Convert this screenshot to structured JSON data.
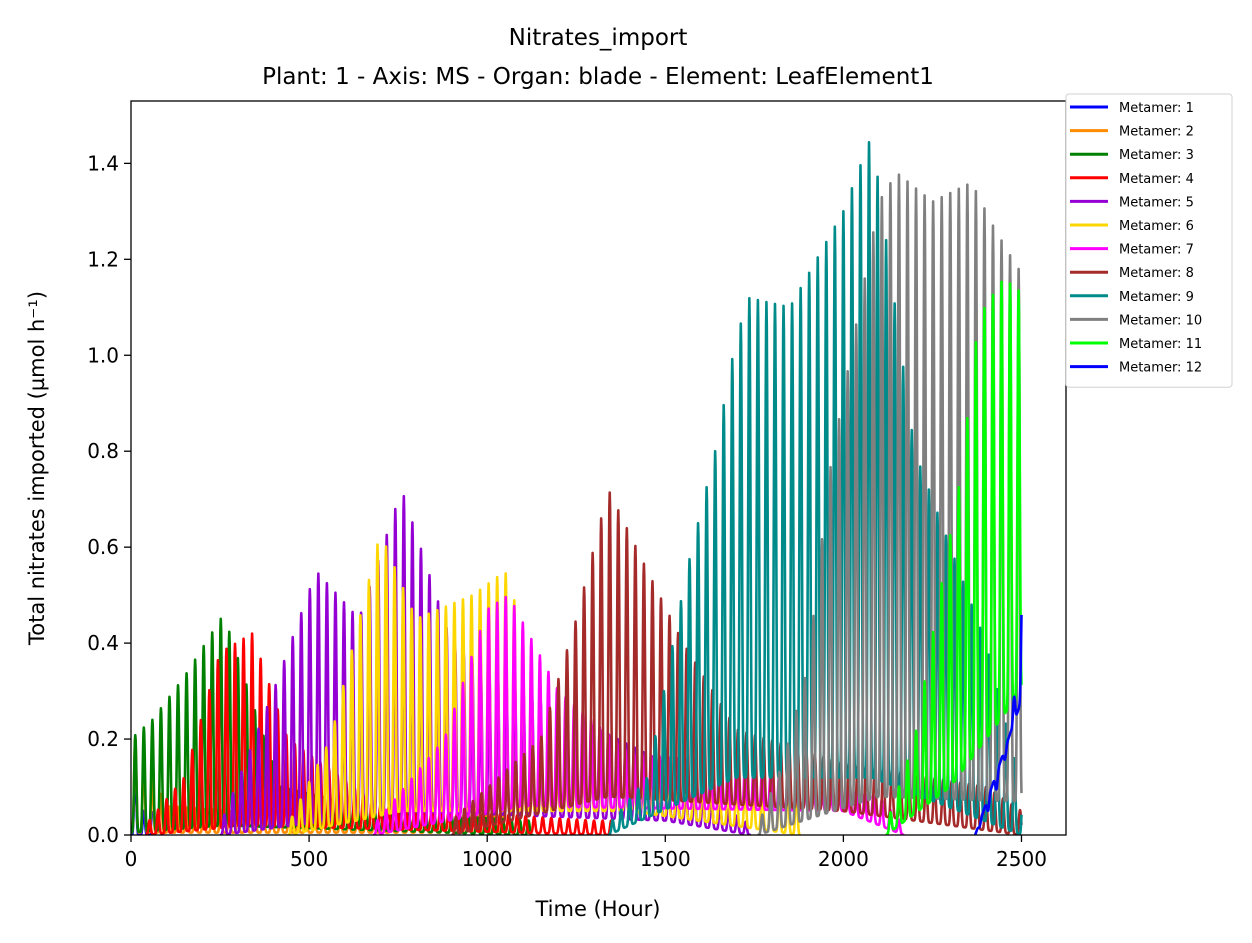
{
  "chart_data": {
    "type": "line",
    "title": "Nitrates_import",
    "subtitle": "Plant: 1 - Axis: MS - Organ: blade - Element: LeafElement1",
    "xlabel": "Time (Hour)",
    "ylabel": "Total nitrates imported (µmol h⁻¹)",
    "xlim": [
      0,
      2625
    ],
    "ylim": [
      0,
      1.53
    ],
    "xticks": [
      0,
      500,
      1000,
      1500,
      2000,
      2500
    ],
    "yticks": [
      0.0,
      0.2,
      0.4,
      0.6,
      0.8,
      1.0,
      1.2,
      1.4
    ],
    "xtick_labels": [
      "0",
      "500",
      "1000",
      "1500",
      "2000",
      "2500"
    ],
    "ytick_labels": [
      "0.0",
      "0.2",
      "0.4",
      "0.6",
      "0.8",
      "1.0",
      "1.2",
      "1.4"
    ],
    "legend_position": "outside-top-right",
    "grid": false,
    "period_hours": 24,
    "series": [
      {
        "name": "Metamer: 1",
        "color": "#0000ff",
        "start": 0,
        "end": 60,
        "peaks": [
          [
            0,
            0.2
          ],
          [
            30,
            0.05
          ]
        ],
        "trough": [
          [
            0,
            0.0
          ]
        ]
      },
      {
        "name": "Metamer: 2",
        "color": "#ff8c00",
        "start": 0,
        "end": 1050,
        "peaks": [
          [
            0,
            0.22
          ],
          [
            100,
            0.06
          ],
          [
            500,
            0.04
          ],
          [
            1000,
            0.04
          ]
        ],
        "trough": [
          [
            0,
            0.005
          ]
        ]
      },
      {
        "name": "Metamer: 3",
        "color": "#008000",
        "start": 0,
        "end": 1130,
        "peaks": [
          [
            0,
            0.2
          ],
          [
            60,
            0.24
          ],
          [
            150,
            0.33
          ],
          [
            260,
            0.46
          ],
          [
            330,
            0.3
          ],
          [
            420,
            0.1
          ],
          [
            700,
            0.05
          ],
          [
            1100,
            0.03
          ]
        ],
        "trough": [
          [
            0,
            0.005
          ],
          [
            260,
            0.02
          ],
          [
            1100,
            0.0
          ]
        ]
      },
      {
        "name": "Metamer: 4",
        "color": "#ff0000",
        "start": 40,
        "end": 1350,
        "peaks": [
          [
            40,
            0.02
          ],
          [
            150,
            0.12
          ],
          [
            250,
            0.38
          ],
          [
            340,
            0.42
          ],
          [
            440,
            0.2
          ],
          [
            700,
            0.06
          ],
          [
            1300,
            0.03
          ]
        ],
        "trough": [
          [
            40,
            0.0
          ],
          [
            330,
            0.02
          ],
          [
            1350,
            0.0
          ]
        ]
      },
      {
        "name": "Metamer: 5",
        "color": "#9400d3",
        "start": 250,
        "end": 1740,
        "peaks": [
          [
            250,
            0.02
          ],
          [
            400,
            0.3
          ],
          [
            520,
            0.55
          ],
          [
            640,
            0.45
          ],
          [
            760,
            0.72
          ],
          [
            900,
            0.4
          ],
          [
            1100,
            0.3
          ],
          [
            1500,
            0.15
          ],
          [
            1740,
            0.02
          ]
        ],
        "trough": [
          [
            250,
            0.0
          ],
          [
            760,
            0.05
          ],
          [
            1500,
            0.03
          ],
          [
            1740,
            0.0
          ]
        ]
      },
      {
        "name": "Metamer: 6",
        "color": "#ffd700",
        "start": 440,
        "end": 1880,
        "peaks": [
          [
            440,
            0.02
          ],
          [
            560,
            0.2
          ],
          [
            700,
            0.63
          ],
          [
            800,
            0.45
          ],
          [
            960,
            0.5
          ],
          [
            1050,
            0.55
          ],
          [
            1200,
            0.2
          ],
          [
            1500,
            0.12
          ],
          [
            1850,
            0.1
          ]
        ],
        "trough": [
          [
            440,
            0.0
          ],
          [
            760,
            0.05
          ],
          [
            1400,
            0.05
          ],
          [
            1880,
            0.0
          ]
        ]
      },
      {
        "name": "Metamer: 7",
        "color": "#ff00ff",
        "start": 680,
        "end": 2170,
        "peaks": [
          [
            680,
            0.02
          ],
          [
            880,
            0.2
          ],
          [
            1000,
            0.47
          ],
          [
            1060,
            0.5
          ],
          [
            1200,
            0.3
          ],
          [
            1400,
            0.17
          ],
          [
            1700,
            0.15
          ],
          [
            2100,
            0.08
          ],
          [
            2170,
            0.02
          ]
        ],
        "trough": [
          [
            680,
            0.0
          ],
          [
            1100,
            0.06
          ],
          [
            2000,
            0.05
          ],
          [
            2170,
            0.0
          ]
        ]
      },
      {
        "name": "Metamer: 8",
        "color": "#a52a2a",
        "start": 900,
        "end": 2500,
        "peaks": [
          [
            900,
            0.03
          ],
          [
            1150,
            0.2
          ],
          [
            1250,
            0.45
          ],
          [
            1340,
            0.72
          ],
          [
            1450,
            0.55
          ],
          [
            1550,
            0.4
          ],
          [
            1700,
            0.22
          ],
          [
            2000,
            0.15
          ],
          [
            2400,
            0.1
          ],
          [
            2500,
            0.05
          ]
        ],
        "trough": [
          [
            900,
            0.0
          ],
          [
            1340,
            0.08
          ],
          [
            2000,
            0.05
          ],
          [
            2500,
            0.0
          ]
        ]
      },
      {
        "name": "Metamer: 9",
        "color": "#008b8b",
        "start": 1340,
        "end": 2500,
        "peaks": [
          [
            1340,
            0.02
          ],
          [
            1450,
            0.12
          ],
          [
            1560,
            0.55
          ],
          [
            1640,
            0.8
          ],
          [
            1690,
            1.0
          ],
          [
            1730,
            1.12
          ],
          [
            1850,
            1.1
          ],
          [
            2000,
            1.3
          ],
          [
            2080,
            1.46
          ],
          [
            2200,
            0.8
          ],
          [
            2400,
            0.4
          ],
          [
            2500,
            0.1
          ]
        ],
        "trough": [
          [
            1340,
            0.0
          ],
          [
            1700,
            0.12
          ],
          [
            2080,
            0.12
          ],
          [
            2500,
            0.0
          ]
        ]
      },
      {
        "name": "Metamer: 10",
        "color": "#808080",
        "start": 1760,
        "end": 2500,
        "peaks": [
          [
            1760,
            0.02
          ],
          [
            1830,
            0.15
          ],
          [
            1900,
            0.35
          ],
          [
            1960,
            0.75
          ],
          [
            2020,
            1.0
          ],
          [
            2100,
            1.32
          ],
          [
            2150,
            1.38
          ],
          [
            2250,
            1.32
          ],
          [
            2360,
            1.36
          ],
          [
            2420,
            1.27
          ],
          [
            2490,
            1.18
          ]
        ],
        "trough": [
          [
            1760,
            0.0
          ],
          [
            2100,
            0.08
          ],
          [
            2490,
            0.07
          ]
        ]
      },
      {
        "name": "Metamer: 11",
        "color": "#00ff00",
        "start": 2120,
        "end": 2500,
        "peaks": [
          [
            2120,
            0.02
          ],
          [
            2200,
            0.2
          ],
          [
            2270,
            0.5
          ],
          [
            2330,
            0.75
          ],
          [
            2380,
            1.08
          ],
          [
            2450,
            1.16
          ],
          [
            2500,
            1.13
          ]
        ],
        "trough": [
          [
            2120,
            0.0
          ],
          [
            2300,
            0.1
          ],
          [
            2500,
            0.3
          ]
        ]
      },
      {
        "name": "Metamer: 12",
        "color": "#0000ff",
        "start": 2370,
        "end": 2500,
        "peaks": [
          [
            2370,
            0.0
          ],
          [
            2420,
            0.07
          ],
          [
            2470,
            0.2
          ],
          [
            2500,
            0.5
          ]
        ],
        "trough": [
          [
            2370,
            0.0
          ],
          [
            2500,
            0.28
          ]
        ]
      }
    ]
  }
}
